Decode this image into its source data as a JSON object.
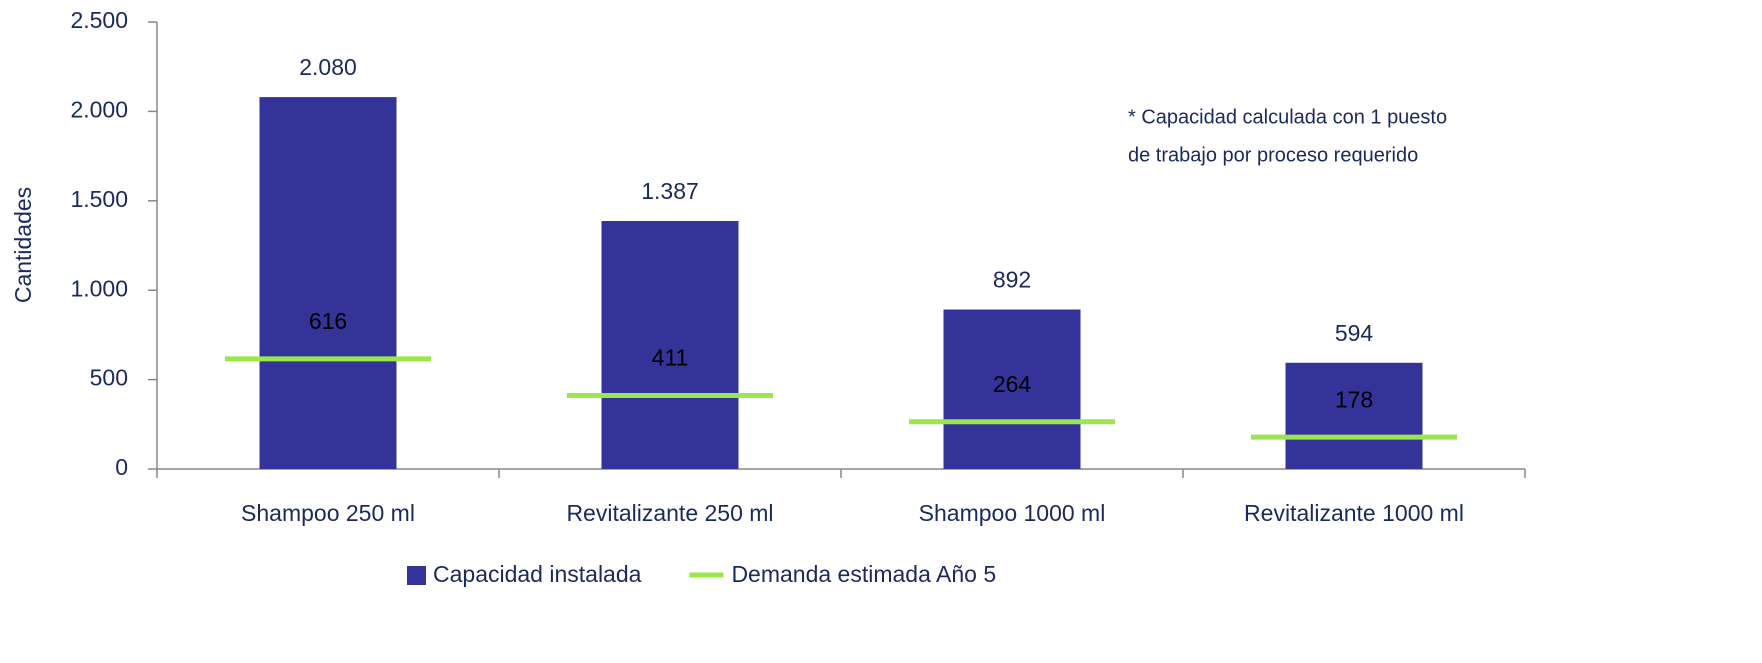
{
  "chart_data": {
    "type": "bar",
    "y_label": "Cantidades",
    "annotation": [
      "* Capacidad calculada con 1 puesto",
      "de trabajo por proceso requerido"
    ],
    "categories": [
      "Shampoo 250 ml",
      "Revitalizante 250 ml",
      "Shampoo 1000 ml",
      "Revitalizante 1000 ml"
    ],
    "series": [
      {
        "name": "Capacidad instalada",
        "type": "bar",
        "color": "#333399",
        "values": [
          2080,
          1387,
          892,
          594
        ],
        "value_labels": [
          "2.080",
          "1.387",
          "892",
          "594"
        ]
      },
      {
        "name": "Demanda estimada Año 5",
        "type": "dash",
        "color": "#99e64d",
        "values": [
          616,
          411,
          264,
          178
        ]
      }
    ],
    "ylim": [
      0,
      2500
    ],
    "yticks": [
      0,
      500,
      {
        "value": 1000,
        "label": "1.000"
      },
      {
        "value": 1500,
        "label": "1.500"
      },
      {
        "value": 2000,
        "label": "2.000"
      },
      {
        "value": 2500,
        "label": "2.500"
      }
    ],
    "grid": false,
    "legend": "bottom"
  }
}
